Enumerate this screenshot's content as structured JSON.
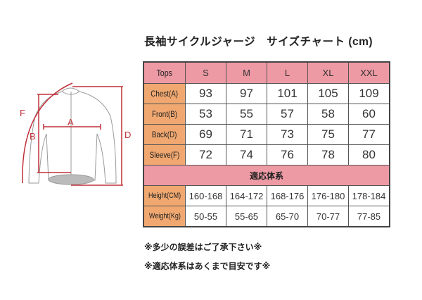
{
  "title": "長袖サイクルジャージ　サイズチャート (cm)",
  "diagram": {
    "labels": {
      "a": "A",
      "b": "B",
      "d": "D",
      "f": "F"
    },
    "line_color": "#C0303A"
  },
  "table": {
    "header": [
      "Tops",
      "S",
      "M",
      "L",
      "XL",
      "XXL"
    ],
    "rows": [
      {
        "label": "Chest(A)",
        "values": [
          "93",
          "97",
          "101",
          "105",
          "109"
        ]
      },
      {
        "label": "Front(B)",
        "values": [
          "53",
          "55",
          "57",
          "58",
          "60"
        ]
      },
      {
        "label": "Back(D)",
        "values": [
          "69",
          "71",
          "73",
          "75",
          "77"
        ]
      },
      {
        "label": "Sleeve(F)",
        "values": [
          "72",
          "74",
          "76",
          "78",
          "80"
        ]
      }
    ],
    "band": "適応体系",
    "fit_rows": [
      {
        "label": "Height(CM)",
        "values": [
          "160-168",
          "164-172",
          "168-176",
          "176-180",
          "178-184"
        ]
      },
      {
        "label": "Weight(Kg)",
        "values": [
          "50-55",
          "55-65",
          "65-70",
          "70-77",
          "77-85"
        ]
      }
    ],
    "colors": {
      "header": "#EE9AA4",
      "label": "#F0A870"
    }
  },
  "notes": [
    "※多少の誤差はご了承下さい※",
    "※適応体系はあくまで目安です※"
  ]
}
